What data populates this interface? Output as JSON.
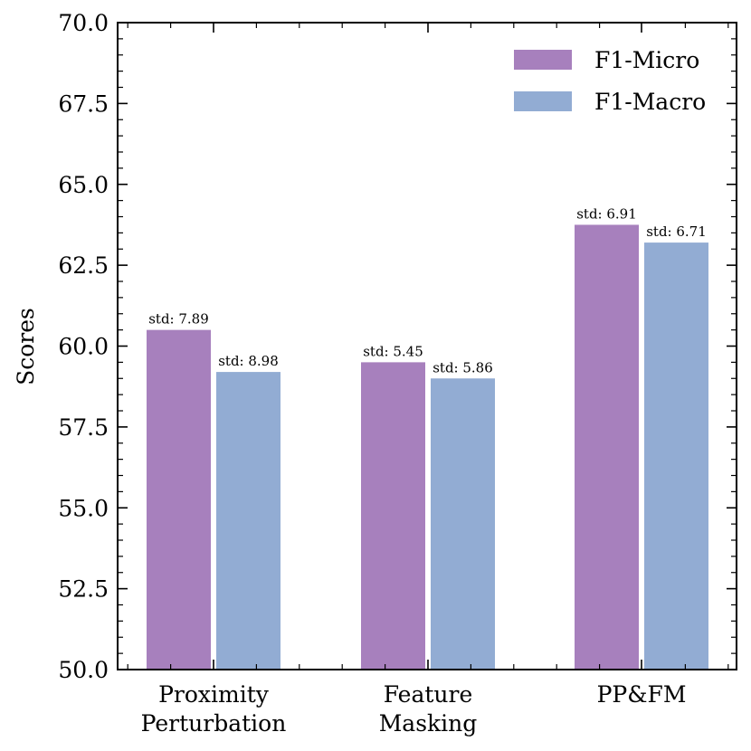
{
  "chart_data": {
    "type": "bar",
    "title": "",
    "xlabel": "",
    "ylabel": "Scores",
    "ylim": [
      50.0,
      70.0
    ],
    "yticks": [
      "50.0",
      "52.5",
      "55.0",
      "57.5",
      "60.0",
      "62.5",
      "65.0",
      "67.5",
      "70.0"
    ],
    "categories": [
      [
        "Proximity",
        "Perturbation"
      ],
      [
        "Feature",
        "Masking"
      ],
      [
        "PP&FM"
      ]
    ],
    "series": [
      {
        "name": "F1-Micro",
        "color": "#a780bd",
        "values": [
          60.5,
          59.5,
          63.75
        ],
        "std_labels": [
          "std: 7.89",
          "std: 5.45",
          "std: 6.91"
        ]
      },
      {
        "name": "F1-Macro",
        "color": "#92acd3",
        "values": [
          59.2,
          59.0,
          63.2
        ],
        "std_labels": [
          "std: 8.98",
          "std: 5.86",
          "std: 6.71"
        ]
      }
    ],
    "legend_position": "top-right",
    "grid": false
  }
}
